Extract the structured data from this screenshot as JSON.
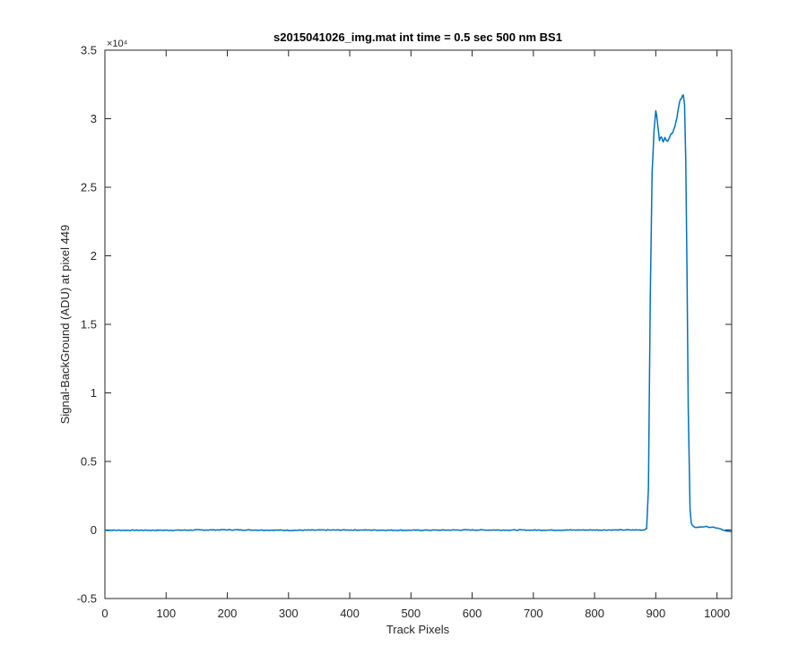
{
  "chart_data": {
    "type": "line",
    "title": "s2015041026_img.mat int time = 0.5 sec  500 nm BS1",
    "xlabel": "Track Pixels",
    "ylabel": "Signal-BackGround (ADU) at pixel 449",
    "y_exponent_label": "×10⁴",
    "xlim": [
      0,
      1024
    ],
    "ylim": [
      -0.5,
      3.5
    ],
    "y_scale_factor": 10000,
    "x_ticks": [
      0,
      100,
      200,
      300,
      400,
      500,
      600,
      700,
      800,
      900,
      1000
    ],
    "y_ticks": [
      -0.5,
      0,
      0.5,
      1,
      1.5,
      2,
      2.5,
      3,
      3.5
    ],
    "x_tick_labels": [
      "0",
      "100",
      "200",
      "300",
      "400",
      "500",
      "600",
      "700",
      "800",
      "900",
      "1000"
    ],
    "y_tick_labels": [
      "-0.5",
      "0",
      "0.5",
      "1",
      "1.5",
      "2",
      "2.5",
      "3",
      "3.5"
    ],
    "grid": false,
    "series": [
      {
        "color": "#0072BD",
        "x": [
          0,
          100,
          200,
          300,
          400,
          500,
          600,
          700,
          800,
          880,
          885,
          888,
          891,
          894,
          897,
          900,
          903,
          906,
          909,
          912,
          915,
          918,
          921,
          924,
          927,
          930,
          933,
          936,
          939,
          942,
          945,
          947,
          949,
          951,
          953,
          956,
          958,
          960,
          963,
          970,
          980,
          990,
          1000,
          1010,
          1015,
          1024
        ],
        "y": [
          -0.002,
          -0.002,
          0.001,
          -0.002,
          0.0,
          -0.002,
          0.0,
          -0.001,
          0.0,
          0.0,
          0.01,
          0.3,
          1.7,
          2.6,
          2.9,
          3.06,
          2.97,
          2.85,
          2.86,
          2.84,
          2.87,
          2.83,
          2.86,
          2.88,
          2.9,
          2.93,
          2.98,
          3.05,
          3.12,
          3.15,
          3.17,
          3.1,
          2.7,
          1.9,
          0.9,
          0.15,
          0.05,
          0.03,
          0.02,
          0.02,
          0.025,
          0.02,
          0.015,
          0.0,
          -0.01,
          -0.01
        ]
      }
    ]
  }
}
